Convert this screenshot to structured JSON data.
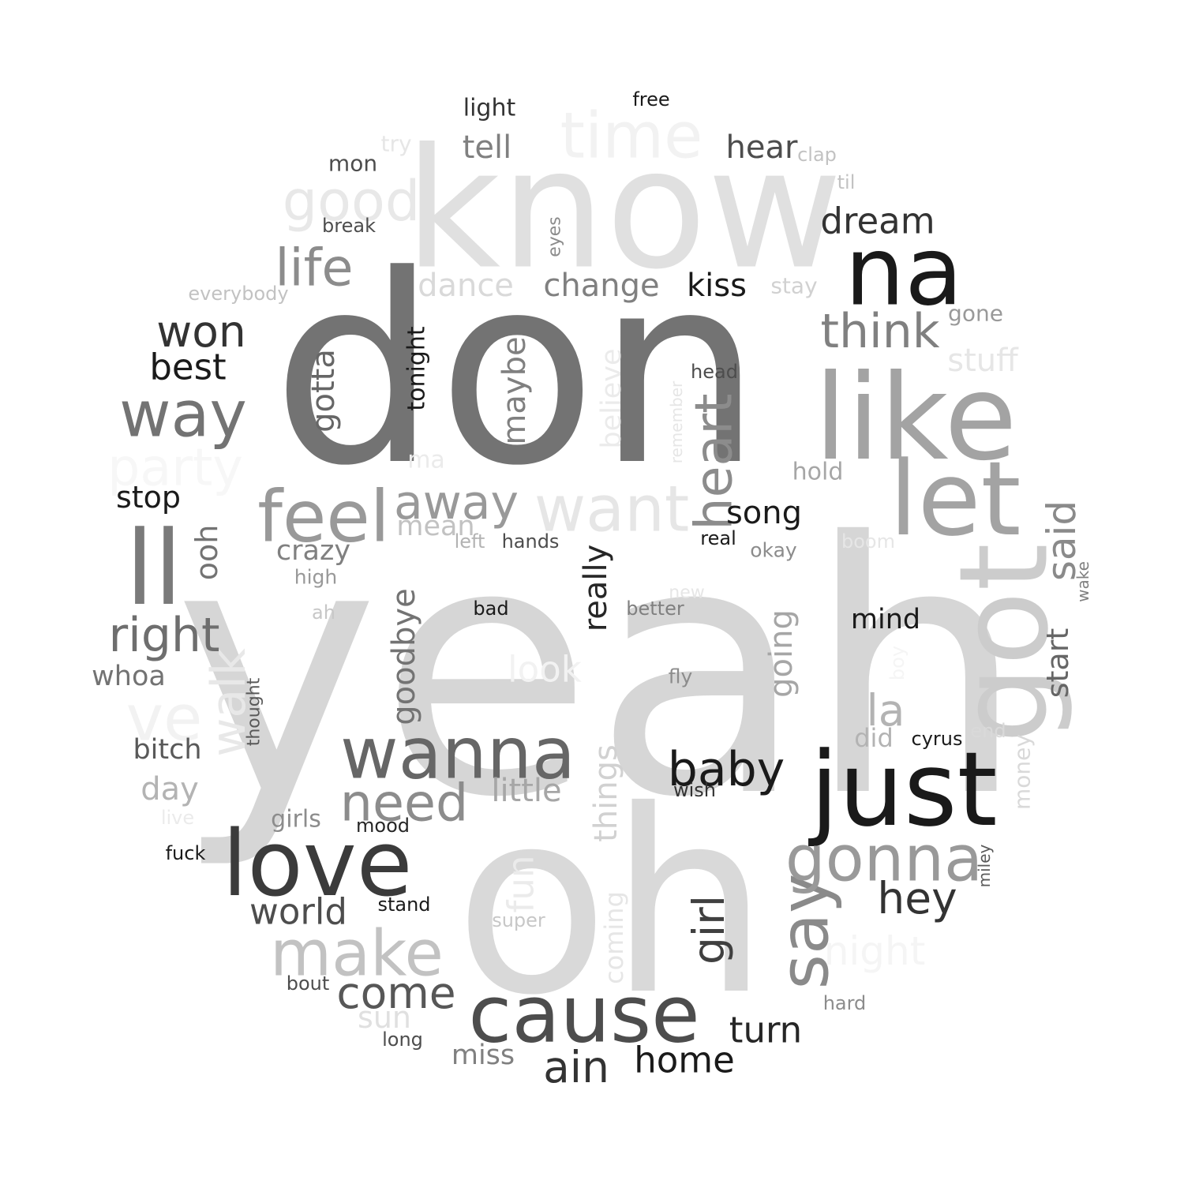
{
  "words": [
    {
      "text": "yeah",
      "color": "#d6d6d6"
    },
    {
      "text": "oh",
      "color": "#d9d9d9"
    },
    {
      "text": "don",
      "color": "#737373"
    },
    {
      "text": "know",
      "color": "#e0e0e0"
    },
    {
      "text": "na",
      "color": "#1a1a1a"
    },
    {
      "text": "like",
      "color": "#a3a3a3"
    },
    {
      "text": "let",
      "color": "#a3a3a3"
    },
    {
      "text": "got",
      "color": "#cccccc"
    },
    {
      "text": "ll",
      "color": "#7a7a7a"
    },
    {
      "text": "just",
      "color": "#1a1a1a"
    },
    {
      "text": "cause",
      "color": "#4d4d4d"
    },
    {
      "text": "love",
      "color": "#3b3b3b"
    },
    {
      "text": "wanna",
      "color": "#666666"
    },
    {
      "text": "time",
      "color": "#f2f2f2"
    },
    {
      "text": "feel",
      "color": "#999999"
    },
    {
      "text": "want",
      "color": "#e6e6e6"
    },
    {
      "text": "way",
      "color": "#737373"
    },
    {
      "text": "make",
      "color": "#c2c2c2"
    },
    {
      "text": "say",
      "color": "#8a8a8a"
    },
    {
      "text": "gonna",
      "color": "#999999"
    },
    {
      "text": "heart",
      "color": "#8c8c8c"
    },
    {
      "text": "girl",
      "color": "#404040"
    },
    {
      "text": "right",
      "color": "#6e6e6e"
    },
    {
      "text": "ve",
      "color": "#f2f2f2"
    },
    {
      "text": "good",
      "color": "#e8e8e8"
    },
    {
      "text": "life",
      "color": "#8c8c8c"
    },
    {
      "text": "think",
      "color": "#808080"
    },
    {
      "text": "won",
      "color": "#333333"
    },
    {
      "text": "baby",
      "color": "#1a1a1a"
    },
    {
      "text": "need",
      "color": "#8c8c8c"
    },
    {
      "text": "come",
      "color": "#575757"
    },
    {
      "text": "ain",
      "color": "#333333"
    },
    {
      "text": "hey",
      "color": "#333333"
    },
    {
      "text": "away",
      "color": "#999999"
    },
    {
      "text": "party",
      "color": "#f7f7f7"
    },
    {
      "text": "walk",
      "color": "#e8e8e8"
    },
    {
      "text": "said",
      "color": "#8a8a8a"
    },
    {
      "text": "dream",
      "color": "#333333"
    },
    {
      "text": "world",
      "color": "#4d4d4d"
    },
    {
      "text": "night",
      "color": "#f5f5f5"
    },
    {
      "text": "best",
      "color": "#1a1a1a"
    },
    {
      "text": "change",
      "color": "#808080"
    },
    {
      "text": "tell",
      "color": "#808080"
    },
    {
      "text": "hear",
      "color": "#4d4d4d"
    },
    {
      "text": "home",
      "color": "#1a1a1a"
    },
    {
      "text": "turn",
      "color": "#262626"
    },
    {
      "text": "la",
      "color": "#b3b3b3"
    },
    {
      "text": "stop",
      "color": "#1a1a1a"
    },
    {
      "text": "song",
      "color": "#1a1a1a"
    },
    {
      "text": "kiss",
      "color": "#1a1a1a"
    },
    {
      "text": "dance",
      "color": "#d9d9d9"
    },
    {
      "text": "gotta",
      "color": "#666666"
    },
    {
      "text": "maybe",
      "color": "#808080"
    },
    {
      "text": "little",
      "color": "#a6a6a6"
    },
    {
      "text": "stuff",
      "color": "#e6e6e6"
    },
    {
      "text": "day",
      "color": "#b3b3b3"
    },
    {
      "text": "crazy",
      "color": "#808080"
    },
    {
      "text": "look",
      "color": "#f2f2f2"
    },
    {
      "text": "things",
      "color": "#d1d1d1"
    },
    {
      "text": "going",
      "color": "#a6a6a6"
    },
    {
      "text": "goodbye",
      "color": "#737373"
    },
    {
      "text": "really",
      "color": "#262626"
    },
    {
      "text": "ooh",
      "color": "#737373"
    },
    {
      "text": "bitch",
      "color": "#595959"
    },
    {
      "text": "whoa",
      "color": "#737373"
    },
    {
      "text": "start",
      "color": "#666666"
    },
    {
      "text": "mind",
      "color": "#1a1a1a"
    },
    {
      "text": "sun",
      "color": "#e0e0e0"
    },
    {
      "text": "mean",
      "color": "#c2c2c2"
    },
    {
      "text": "believe",
      "color": "#ebebeb"
    },
    {
      "text": "fun",
      "color": "#ebebeb"
    },
    {
      "text": "miss",
      "color": "#808080"
    },
    {
      "text": "tonight",
      "color": "#1a1a1a"
    },
    {
      "text": "coming",
      "color": "#e6e6e6"
    },
    {
      "text": "light",
      "color": "#333333"
    },
    {
      "text": "did",
      "color": "#b3b3b3"
    },
    {
      "text": "girls",
      "color": "#8c8c8c"
    },
    {
      "text": "money",
      "color": "#d9d9d9"
    },
    {
      "text": "hold",
      "color": "#a6a6a6"
    },
    {
      "text": "gone",
      "color": "#999999"
    },
    {
      "text": "stay",
      "color": "#d1d1d1"
    },
    {
      "text": "mon",
      "color": "#4d4d4d"
    },
    {
      "text": "try",
      "color": "#e6e6e6"
    },
    {
      "text": "everybody",
      "color": "#c2c2c2"
    },
    {
      "text": "break",
      "color": "#4d4d4d"
    },
    {
      "text": "high",
      "color": "#999999"
    },
    {
      "text": "fuck",
      "color": "#1a1a1a"
    },
    {
      "text": "thought",
      "color": "#595959"
    },
    {
      "text": "okay",
      "color": "#8c8c8c"
    },
    {
      "text": "clap",
      "color": "#c2c2c2"
    },
    {
      "text": "til",
      "color": "#c2c2c2"
    },
    {
      "text": "head",
      "color": "#4d4d4d"
    },
    {
      "text": "eyes",
      "color": "#8c8c8c"
    },
    {
      "text": "ma",
      "color": "#ebebeb"
    },
    {
      "text": "hands",
      "color": "#4d4d4d"
    },
    {
      "text": "left",
      "color": "#b3b3b3"
    },
    {
      "text": "real",
      "color": "#1a1a1a"
    },
    {
      "text": "boom",
      "color": "#e6e6e6"
    },
    {
      "text": "new",
      "color": "#e6e6e6"
    },
    {
      "text": "better",
      "color": "#808080"
    },
    {
      "text": "bad",
      "color": "#1a1a1a"
    },
    {
      "text": "ah",
      "color": "#c7c7c7"
    },
    {
      "text": "fly",
      "color": "#8c8c8c"
    },
    {
      "text": "wish",
      "color": "#333333"
    },
    {
      "text": "cyrus",
      "color": "#1a1a1a"
    },
    {
      "text": "end",
      "color": "#d9d9d9"
    },
    {
      "text": "mood",
      "color": "#262626"
    },
    {
      "text": "stand",
      "color": "#1a1a1a"
    },
    {
      "text": "super",
      "color": "#c7c7c7"
    },
    {
      "text": "bout",
      "color": "#4d4d4d"
    },
    {
      "text": "long",
      "color": "#4d4d4d"
    },
    {
      "text": "hard",
      "color": "#8c8c8c"
    },
    {
      "text": "live",
      "color": "#ebebeb"
    },
    {
      "text": "free",
      "color": "#1a1a1a"
    },
    {
      "text": "wake",
      "color": "#808080"
    },
    {
      "text": "miley",
      "color": "#595959"
    },
    {
      "text": "remember",
      "color": "#e6e6e6"
    },
    {
      "text": "boy",
      "color": "#f5f5f5"
    }
  ]
}
